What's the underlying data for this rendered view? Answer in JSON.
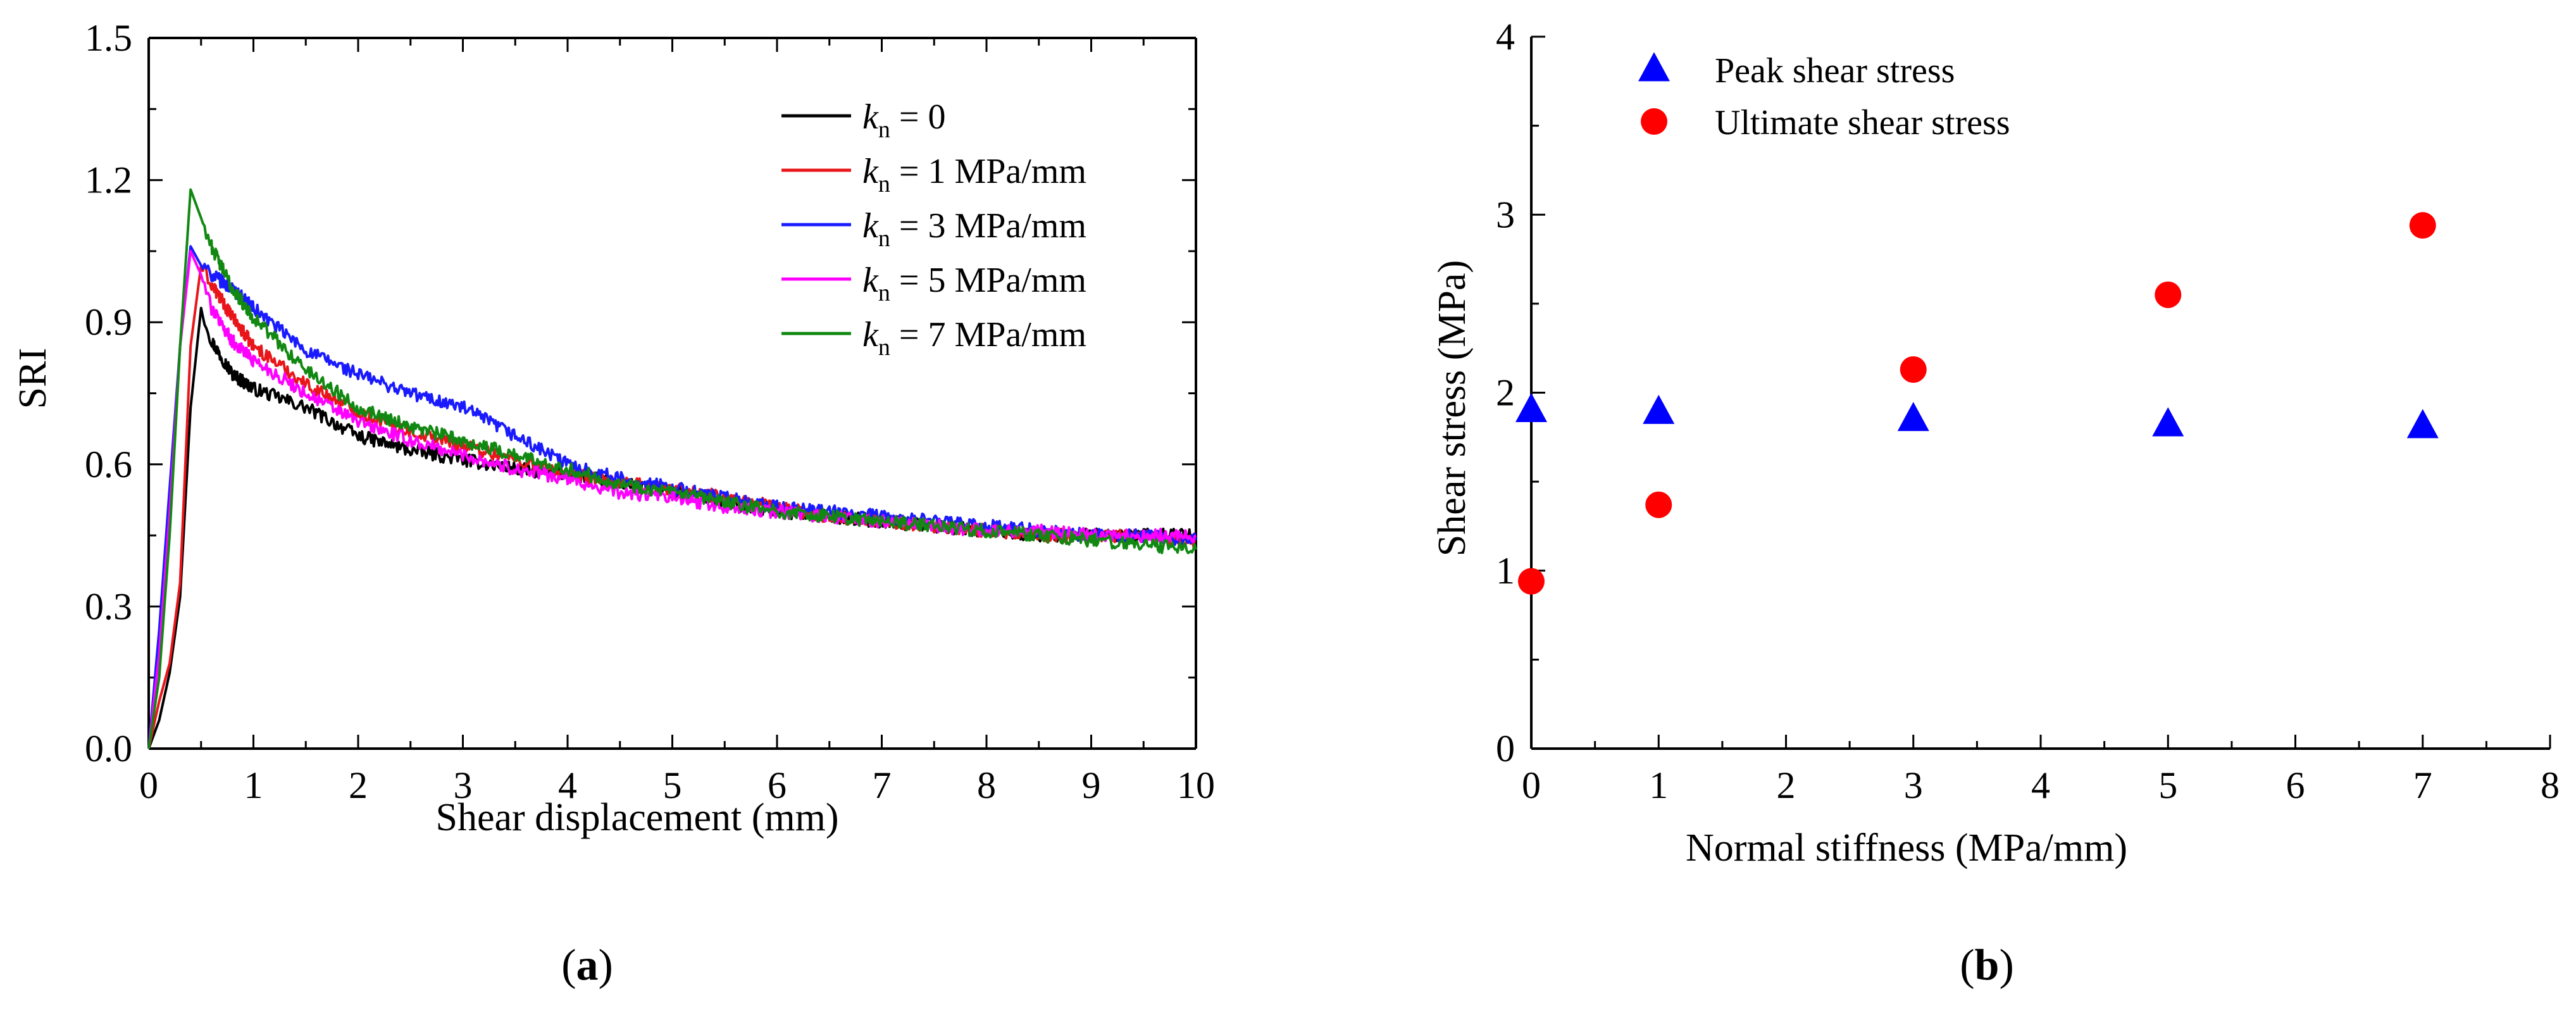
{
  "chart_data": [
    {
      "panel_label": "(a)",
      "type": "line",
      "title": "",
      "xlabel": "Shear displacement (mm)",
      "ylabel": "SRI",
      "xlim": [
        0,
        10
      ],
      "ylim": [
        0,
        1.5
      ],
      "xticks": [
        "0",
        "1",
        "2",
        "3",
        "4",
        "5",
        "6",
        "7",
        "8",
        "9",
        "10"
      ],
      "yticks": [
        "0.0",
        "0.3",
        "0.6",
        "0.9",
        "1.2",
        "1.5"
      ],
      "grid": false,
      "legend_position": "top-right",
      "series": [
        {
          "name_prefix": "k",
          "name_sub": "n",
          "name_suffix": " = 0",
          "color": "#000000",
          "x": [
            0,
            0.1,
            0.2,
            0.3,
            0.4,
            0.5,
            0.6,
            0.8,
            1.0,
            1.5,
            2.0,
            2.5,
            3.0,
            3.5,
            4.0,
            4.5,
            5.0,
            5.5,
            6.0,
            6.5,
            7.0,
            7.5,
            8.0,
            8.5,
            9.0,
            9.5,
            10.0
          ],
          "y": [
            0.0,
            0.06,
            0.16,
            0.32,
            0.72,
            0.93,
            0.86,
            0.79,
            0.76,
            0.72,
            0.66,
            0.63,
            0.61,
            0.59,
            0.58,
            0.56,
            0.54,
            0.52,
            0.5,
            0.49,
            0.48,
            0.47,
            0.46,
            0.45,
            0.45,
            0.45,
            0.45
          ]
        },
        {
          "name_prefix": "k",
          "name_sub": "n",
          "name_suffix": " = 1 MPa/mm",
          "color": "#e8161b",
          "x": [
            0,
            0.1,
            0.2,
            0.3,
            0.4,
            0.5,
            0.6,
            0.8,
            1.0,
            1.5,
            2.0,
            2.5,
            3.0,
            3.5,
            4.0,
            4.5,
            5.0,
            5.5,
            6.0,
            6.5,
            7.0,
            7.5,
            8.0,
            8.5,
            9.0,
            9.5,
            10.0
          ],
          "y": [
            0.0,
            0.1,
            0.18,
            0.35,
            0.85,
            1.02,
            0.98,
            0.91,
            0.85,
            0.77,
            0.71,
            0.67,
            0.64,
            0.61,
            0.58,
            0.56,
            0.55,
            0.53,
            0.51,
            0.49,
            0.48,
            0.47,
            0.46,
            0.45,
            0.45,
            0.45,
            0.44
          ]
        },
        {
          "name_prefix": "k",
          "name_sub": "n",
          "name_suffix": " = 3 MPa/mm",
          "color": "#1a1aff",
          "x": [
            0,
            0.1,
            0.2,
            0.3,
            0.4,
            0.5,
            0.6,
            0.8,
            1.0,
            1.5,
            2.0,
            2.5,
            3.0,
            3.5,
            4.0,
            4.5,
            5.0,
            5.5,
            6.0,
            6.5,
            7.0,
            7.5,
            8.0,
            8.5,
            9.0,
            9.5,
            10.0
          ],
          "y": [
            0.0,
            0.25,
            0.55,
            0.85,
            1.06,
            1.02,
            1.0,
            0.97,
            0.93,
            0.84,
            0.79,
            0.75,
            0.72,
            0.66,
            0.6,
            0.57,
            0.55,
            0.53,
            0.51,
            0.5,
            0.49,
            0.48,
            0.47,
            0.46,
            0.45,
            0.45,
            0.44
          ]
        },
        {
          "name_prefix": "k",
          "name_sub": "n",
          "name_suffix": " = 5 MPa/mm",
          "color": "#ff00ff",
          "x": [
            0,
            0.1,
            0.2,
            0.3,
            0.4,
            0.5,
            0.6,
            0.8,
            1.0,
            1.5,
            2.0,
            2.5,
            3.0,
            3.5,
            4.0,
            4.5,
            5.0,
            5.5,
            6.0,
            6.5,
            7.0,
            7.5,
            8.0,
            8.5,
            9.0,
            9.5,
            10.0
          ],
          "y": [
            0.0,
            0.2,
            0.5,
            0.85,
            1.05,
            1.0,
            0.93,
            0.86,
            0.82,
            0.75,
            0.69,
            0.65,
            0.62,
            0.59,
            0.57,
            0.54,
            0.53,
            0.51,
            0.5,
            0.49,
            0.48,
            0.47,
            0.46,
            0.46,
            0.45,
            0.45,
            0.45
          ]
        },
        {
          "name_prefix": "k",
          "name_sub": "n",
          "name_suffix": " = 7 MPa/mm",
          "color": "#118811",
          "x": [
            0,
            0.1,
            0.2,
            0.3,
            0.4,
            0.5,
            0.6,
            0.8,
            1.0,
            1.5,
            2.0,
            2.5,
            3.0,
            3.5,
            4.0,
            4.5,
            5.0,
            5.5,
            6.0,
            6.5,
            7.0,
            7.5,
            8.0,
            8.5,
            9.0,
            9.5,
            10.0
          ],
          "y": [
            0.0,
            0.15,
            0.45,
            0.85,
            1.18,
            1.12,
            1.06,
            0.97,
            0.91,
            0.8,
            0.72,
            0.68,
            0.65,
            0.62,
            0.59,
            0.56,
            0.54,
            0.52,
            0.5,
            0.49,
            0.48,
            0.47,
            0.46,
            0.45,
            0.44,
            0.43,
            0.42
          ]
        }
      ]
    },
    {
      "panel_label": "(b)",
      "type": "scatter",
      "title": "",
      "xlabel": "Normal stiffness (MPa/mm)",
      "ylabel": "Shear stress (MPa)",
      "xlim": [
        0,
        8
      ],
      "ylim": [
        0,
        4
      ],
      "xticks": [
        "0",
        "1",
        "2",
        "3",
        "4",
        "5",
        "6",
        "7",
        "8"
      ],
      "yticks": [
        "0",
        "1",
        "2",
        "3",
        "4"
      ],
      "grid": false,
      "legend_position": "top-left",
      "series": [
        {
          "name": "Peak shear stress",
          "marker": "triangle",
          "color": "#0000ff",
          "x": [
            0,
            1,
            3,
            5,
            7
          ],
          "y": [
            1.9,
            1.89,
            1.85,
            1.82,
            1.81
          ]
        },
        {
          "name": "Ultimate shear stress",
          "marker": "circle",
          "color": "#ff0000",
          "x": [
            0,
            1,
            3,
            5,
            7
          ],
          "y": [
            0.94,
            1.37,
            2.13,
            2.55,
            2.94
          ]
        }
      ]
    }
  ]
}
